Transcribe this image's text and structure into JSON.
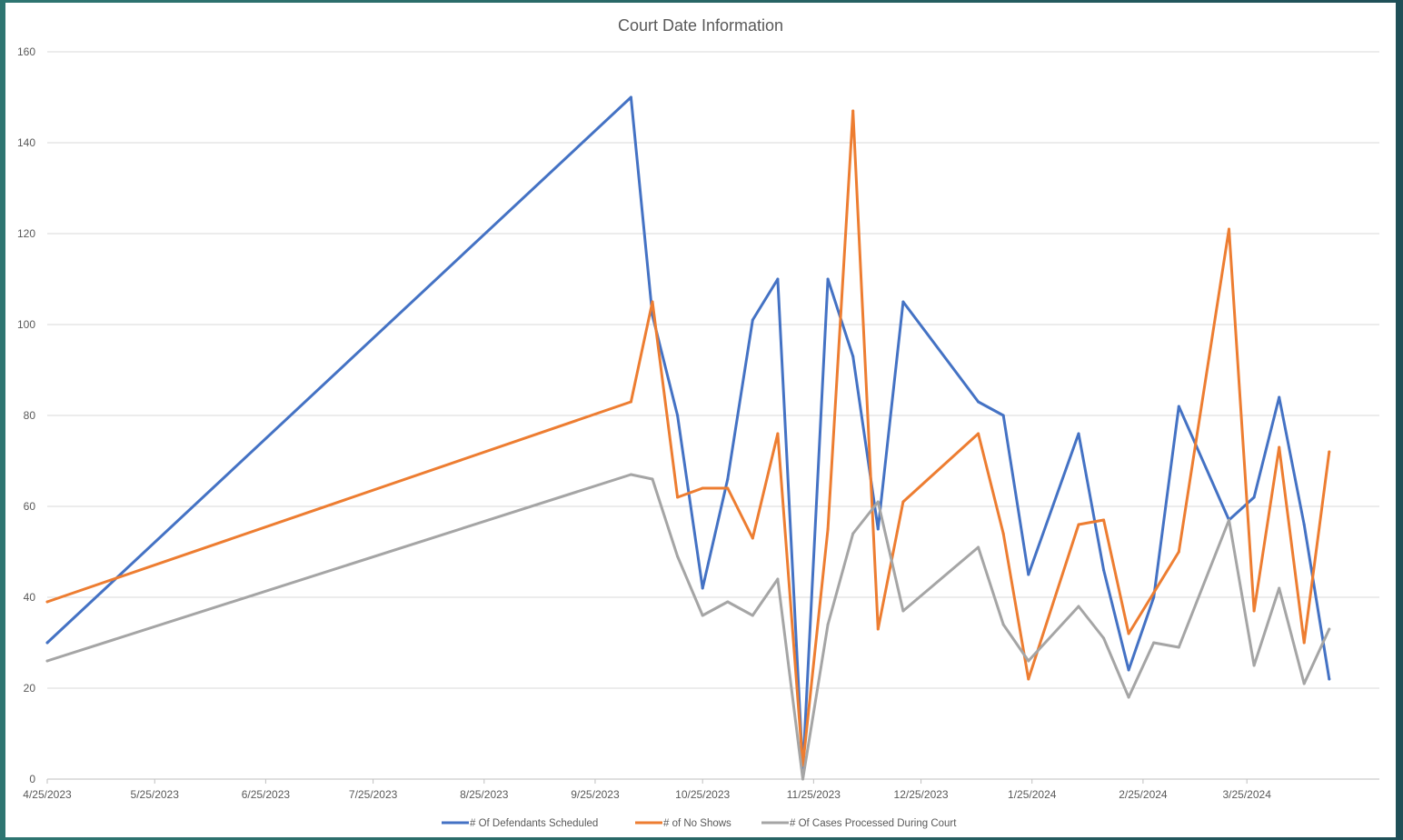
{
  "chart_data": {
    "type": "line",
    "title": "Court Date Information",
    "xlabel": "",
    "ylabel": "",
    "ylim": [
      0,
      160
    ],
    "y_ticks": [
      0,
      20,
      40,
      60,
      80,
      100,
      120,
      140,
      160
    ],
    "x_ticks": [
      "4/25/2023",
      "5/25/2023",
      "6/25/2023",
      "7/25/2023",
      "8/25/2023",
      "9/25/2023",
      "10/25/2023",
      "11/25/2023",
      "12/25/2023",
      "1/25/2024",
      "2/25/2024",
      "3/25/2024"
    ],
    "x_axis_type": "date",
    "x_range": [
      "2023-04-25",
      "2024-05-01"
    ],
    "grid": "horizontal",
    "legend_position": "bottom",
    "x": [
      "2023-04-25",
      "2023-10-05",
      "2023-10-11",
      "2023-10-18",
      "2023-10-25",
      "2023-11-01",
      "2023-11-08",
      "2023-11-15",
      "2023-11-22",
      "2023-11-29",
      "2023-12-06",
      "2023-12-13",
      "2023-12-20",
      "2024-01-10",
      "2024-01-17",
      "2024-01-24",
      "2024-02-07",
      "2024-02-14",
      "2024-02-21",
      "2024-02-28",
      "2024-03-06",
      "2024-03-20",
      "2024-03-27",
      "2024-04-03",
      "2024-04-10",
      "2024-04-17"
    ],
    "series": [
      {
        "name": "# Of Defendants Scheduled",
        "color": "#4472c4",
        "values": [
          30,
          150,
          102,
          80,
          42,
          66,
          101,
          110,
          2,
          110,
          93,
          55,
          105,
          83,
          80,
          45,
          76,
          46,
          24,
          40,
          82,
          57,
          62,
          84,
          56,
          22
        ]
      },
      {
        "name": "# of No Shows",
        "color": "#ed7d31",
        "values": [
          39,
          83,
          105,
          62,
          64,
          64,
          53,
          76,
          3,
          55,
          147,
          33,
          61,
          76,
          54,
          22,
          56,
          57,
          32,
          41,
          50,
          121,
          37,
          73,
          30,
          72
        ]
      },
      {
        "name": "# Of Cases Processed During Court",
        "color": "#a5a5a5",
        "values": [
          26,
          67,
          66,
          49,
          36,
          39,
          36,
          44,
          0,
          34,
          54,
          61,
          37,
          51,
          34,
          26,
          38,
          31,
          18,
          30,
          29,
          57,
          25,
          42,
          21,
          33
        ]
      }
    ]
  }
}
